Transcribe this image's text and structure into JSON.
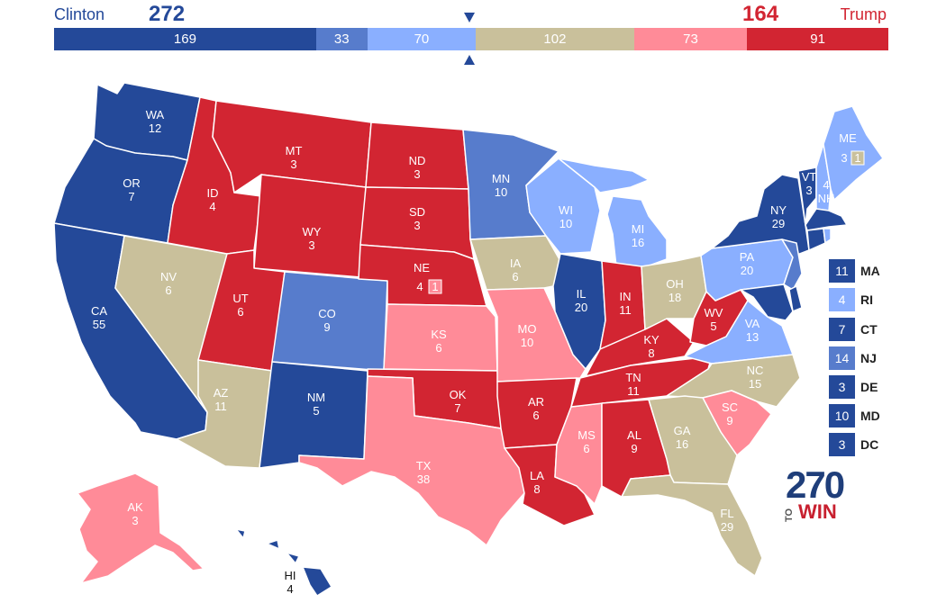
{
  "colors": {
    "safe_dem": "#244999",
    "likely_dem": "#577ccc",
    "lean_dem": "#8aafff",
    "tossup": "#c9c09b",
    "lean_rep": "#ff8b98",
    "likely_rep": "#ff5865",
    "safe_rep": "#d22532"
  },
  "header": {
    "dem_name": "Clinton",
    "dem_total": "272",
    "rep_name": "Trump",
    "rep_total": "164"
  },
  "bar": [
    {
      "label": "169",
      "value": 169,
      "color": "#244999"
    },
    {
      "label": "33",
      "value": 33,
      "color": "#577ccc"
    },
    {
      "label": "70",
      "value": 70,
      "color": "#8aafff"
    },
    {
      "label": "102",
      "value": 102,
      "color": "#c9c09b"
    },
    {
      "label": "73",
      "value": 73,
      "color": "#ff8b98"
    },
    {
      "label": "91",
      "value": 91,
      "color": "#d22532"
    }
  ],
  "states": {
    "WA": {
      "abbr": "WA",
      "ev": "12"
    },
    "OR": {
      "abbr": "OR",
      "ev": "7"
    },
    "CA": {
      "abbr": "CA",
      "ev": "55"
    },
    "NV": {
      "abbr": "NV",
      "ev": "6"
    },
    "ID": {
      "abbr": "ID",
      "ev": "4"
    },
    "MT": {
      "abbr": "MT",
      "ev": "3"
    },
    "WY": {
      "abbr": "WY",
      "ev": "3"
    },
    "UT": {
      "abbr": "UT",
      "ev": "6"
    },
    "AZ": {
      "abbr": "AZ",
      "ev": "11"
    },
    "CO": {
      "abbr": "CO",
      "ev": "9"
    },
    "NM": {
      "abbr": "NM",
      "ev": "5"
    },
    "ND": {
      "abbr": "ND",
      "ev": "3"
    },
    "SD": {
      "abbr": "SD",
      "ev": "3"
    },
    "NE": {
      "abbr": "NE",
      "ev": "4",
      "extra": "1"
    },
    "KS": {
      "abbr": "KS",
      "ev": "6"
    },
    "OK": {
      "abbr": "OK",
      "ev": "7"
    },
    "TX": {
      "abbr": "TX",
      "ev": "38"
    },
    "MN": {
      "abbr": "MN",
      "ev": "10"
    },
    "IA": {
      "abbr": "IA",
      "ev": "6"
    },
    "MO": {
      "abbr": "MO",
      "ev": "10"
    },
    "AR": {
      "abbr": "AR",
      "ev": "6"
    },
    "LA": {
      "abbr": "LA",
      "ev": "8"
    },
    "WI": {
      "abbr": "WI",
      "ev": "10"
    },
    "IL": {
      "abbr": "IL",
      "ev": "20"
    },
    "MS": {
      "abbr": "MS",
      "ev": "6"
    },
    "MI": {
      "abbr": "MI",
      "ev": "16"
    },
    "IN": {
      "abbr": "IN",
      "ev": "11"
    },
    "KY": {
      "abbr": "KY",
      "ev": "8"
    },
    "TN": {
      "abbr": "TN",
      "ev": "11"
    },
    "AL": {
      "abbr": "AL",
      "ev": "9"
    },
    "OH": {
      "abbr": "OH",
      "ev": "18"
    },
    "WV": {
      "abbr": "WV",
      "ev": "5"
    },
    "VA": {
      "abbr": "VA",
      "ev": "13"
    },
    "NC": {
      "abbr": "NC",
      "ev": "15"
    },
    "SC": {
      "abbr": "SC",
      "ev": "9"
    },
    "GA": {
      "abbr": "GA",
      "ev": "16"
    },
    "FL": {
      "abbr": "FL",
      "ev": "29"
    },
    "PA": {
      "abbr": "PA",
      "ev": "20"
    },
    "NY": {
      "abbr": "NY",
      "ev": "29"
    },
    "VT": {
      "abbr": "VT",
      "ev": "3"
    },
    "NH": {
      "abbr": "NH",
      "ev": "4"
    },
    "ME": {
      "abbr": "ME",
      "ev": "3",
      "extra": "1"
    },
    "AK": {
      "abbr": "AK",
      "ev": "3"
    },
    "HI": {
      "abbr": "HI",
      "ev": "4"
    }
  },
  "small_states": [
    {
      "ev": "11",
      "abbr": "MA",
      "color": "#244999"
    },
    {
      "ev": "4",
      "abbr": "RI",
      "color": "#8aafff"
    },
    {
      "ev": "7",
      "abbr": "CT",
      "color": "#244999"
    },
    {
      "ev": "14",
      "abbr": "NJ",
      "color": "#577ccc"
    },
    {
      "ev": "3",
      "abbr": "DE",
      "color": "#244999"
    },
    {
      "ev": "10",
      "abbr": "MD",
      "color": "#244999"
    },
    {
      "ev": "3",
      "abbr": "DC",
      "color": "#244999"
    }
  ],
  "logo": {
    "number": "270",
    "to": "TO",
    "win": "WIN"
  }
}
